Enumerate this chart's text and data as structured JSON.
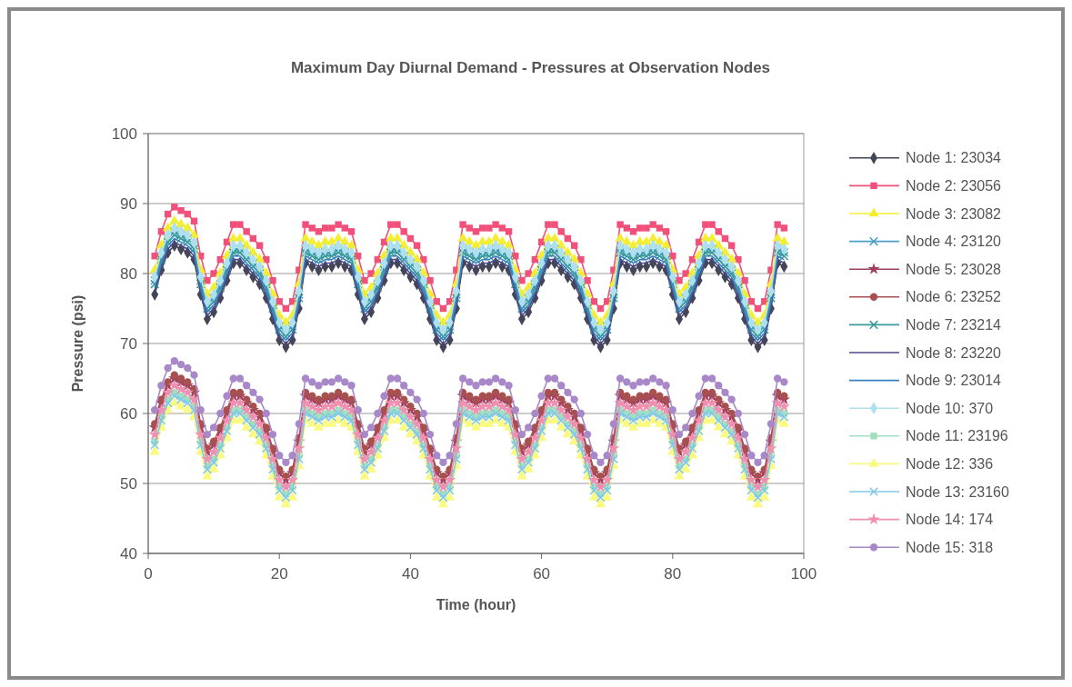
{
  "chart_data": {
    "type": "line",
    "title": "Maximum Day Diurnal Demand - Pressures at Observation Nodes",
    "xlabel": "Time (hour)",
    "ylabel": "Pressure (psi)",
    "xlim": [
      0,
      100
    ],
    "xticks": [
      0,
      20,
      40,
      60,
      80,
      100
    ],
    "ylim": [
      40,
      100
    ],
    "yticks": [
      40,
      50,
      60,
      70,
      80,
      90,
      100
    ],
    "grid": "y",
    "legend": "right",
    "x": [
      1,
      2,
      3,
      4,
      5,
      6,
      7,
      8,
      9,
      10,
      11,
      12,
      13,
      14,
      15,
      16,
      17,
      18,
      19,
      20,
      21,
      22,
      23,
      24,
      25,
      26,
      27,
      28,
      29,
      30,
      31,
      32,
      33,
      34,
      35,
      36,
      37,
      38,
      39,
      40,
      41,
      42,
      43,
      44,
      45,
      46,
      47,
      48,
      49,
      50,
      51,
      52,
      53,
      54,
      55,
      56,
      57,
      58,
      59,
      60,
      61,
      62,
      63,
      64,
      65,
      66,
      67,
      68,
      69,
      70,
      71,
      72,
      73,
      74,
      75,
      76,
      77,
      78,
      79,
      80,
      81,
      82,
      83,
      84,
      85,
      86,
      87,
      88,
      89,
      90,
      91,
      92,
      93,
      94,
      95,
      96,
      97
    ],
    "series": [
      {
        "name": "Node 1: 23034",
        "color": "#45455a",
        "marker": "diamond",
        "values": [
          77,
          80.5,
          83,
          84,
          83.5,
          83,
          82,
          77,
          73.5,
          74.5,
          76.5,
          79,
          81.5,
          81.5,
          80.5,
          79.5,
          78.5,
          76.5,
          73.5,
          70.5,
          69.5,
          70.5,
          75,
          81.5,
          81,
          80.5,
          81,
          81,
          81.5,
          81,
          80.5,
          77,
          73.5,
          74.5,
          76.5,
          79,
          81.5,
          81.5,
          80.5,
          79.5,
          78.5,
          76.5,
          73.5,
          70.5,
          69.5,
          70.5,
          75,
          81.5,
          81,
          80.5,
          81,
          81,
          81.5,
          81,
          80.5,
          77,
          73.5,
          74.5,
          76.5,
          79,
          81.5,
          81.5,
          80.5,
          79.5,
          78.5,
          76.5,
          73.5,
          70.5,
          69.5,
          70.5,
          75,
          81.5,
          81,
          80.5,
          81,
          81,
          81.5,
          81,
          80.5,
          77,
          73.5,
          74.5,
          76.5,
          79,
          81.5,
          81.5,
          80.5,
          79.5,
          78.5,
          76.5,
          73.5,
          70.5,
          69.5,
          70.5,
          75,
          81.5,
          81
        ]
      },
      {
        "name": "Node 2: 23056",
        "color": "#f0507a",
        "marker": "square",
        "values": [
          82.5,
          86,
          88.5,
          89.5,
          89,
          88.5,
          87.5,
          82.5,
          79,
          80,
          82,
          84.5,
          87,
          87,
          86,
          85,
          84,
          82,
          79,
          76,
          75,
          76,
          80.5,
          87,
          86.5,
          86,
          86.5,
          86.5,
          87,
          86.5,
          86,
          82.5,
          79,
          80,
          82,
          84.5,
          87,
          87,
          86,
          85,
          84,
          82,
          79,
          76,
          75,
          76,
          80.5,
          87,
          86.5,
          86,
          86.5,
          86.5,
          87,
          86.5,
          86,
          82.5,
          79,
          80,
          82,
          84.5,
          87,
          87,
          86,
          85,
          84,
          82,
          79,
          76,
          75,
          76,
          80.5,
          87,
          86.5,
          86,
          86.5,
          86.5,
          87,
          86.5,
          86,
          82.5,
          79,
          80,
          82,
          84.5,
          87,
          87,
          86,
          85,
          84,
          82,
          79,
          76,
          75,
          76,
          80.5,
          87,
          86.5
        ]
      },
      {
        "name": "Node 3: 23082",
        "color": "#f5ee30",
        "marker": "triangle",
        "values": [
          80.5,
          84,
          86.5,
          87.5,
          87,
          86.5,
          85.5,
          80.5,
          77,
          78,
          80,
          82.5,
          85,
          85,
          84,
          83,
          82,
          80,
          77,
          74,
          73,
          74,
          78.5,
          85,
          84.5,
          84,
          84.5,
          84.5,
          85,
          84.5,
          84,
          80.5,
          77,
          78,
          80,
          82.5,
          85,
          85,
          84,
          83,
          82,
          80,
          77,
          74,
          73,
          74,
          78.5,
          85,
          84.5,
          84,
          84.5,
          84.5,
          85,
          84.5,
          84,
          80.5,
          77,
          78,
          80,
          82.5,
          85,
          85,
          84,
          83,
          82,
          80,
          77,
          74,
          73,
          74,
          78.5,
          85,
          84.5,
          84,
          84.5,
          84.5,
          85,
          84.5,
          84,
          80.5,
          77,
          78,
          80,
          82.5,
          85,
          85,
          84,
          83,
          82,
          80,
          77,
          74,
          73,
          74,
          78.5,
          85,
          84.5
        ]
      },
      {
        "name": "Node 4: 23120",
        "color": "#4aa0c8",
        "marker": "cross",
        "values": [
          79,
          82.5,
          85,
          86,
          85.5,
          85,
          84,
          79,
          75.5,
          76.5,
          78.5,
          81,
          83.5,
          83.5,
          82.5,
          81.5,
          80.5,
          78.5,
          75.5,
          72.5,
          71.5,
          72.5,
          77,
          83.5,
          83,
          82.5,
          83,
          83,
          83.5,
          83,
          82.5,
          79,
          75.5,
          76.5,
          78.5,
          81,
          83.5,
          83.5,
          82.5,
          81.5,
          80.5,
          78.5,
          75.5,
          72.5,
          71.5,
          72.5,
          77,
          83.5,
          83,
          82.5,
          83,
          83,
          83.5,
          83,
          82.5,
          79,
          75.5,
          76.5,
          78.5,
          81,
          83.5,
          83.5,
          82.5,
          81.5,
          80.5,
          78.5,
          75.5,
          72.5,
          71.5,
          72.5,
          77,
          83.5,
          83,
          82.5,
          83,
          83,
          83.5,
          83,
          82.5,
          79,
          75.5,
          76.5,
          78.5,
          81,
          83.5,
          83.5,
          82.5,
          81.5,
          80.5,
          78.5,
          75.5,
          72.5,
          71.5,
          72.5,
          77,
          83.5,
          83
        ]
      },
      {
        "name": "Node 5: 23028",
        "color": "#a04060",
        "marker": "star",
        "values": [
          58,
          61.5,
          64,
          65,
          64.5,
          64,
          63,
          58,
          54.5,
          55.5,
          57.5,
          60,
          62.5,
          62.5,
          61.5,
          60.5,
          59.5,
          57.5,
          54.5,
          51.5,
          50.5,
          51.5,
          56,
          62.5,
          62,
          61.5,
          62,
          62,
          62.5,
          62,
          61.5,
          58,
          54.5,
          55.5,
          57.5,
          60,
          62.5,
          62.5,
          61.5,
          60.5,
          59.5,
          57.5,
          54.5,
          51.5,
          50.5,
          51.5,
          56,
          62.5,
          62,
          61.5,
          62,
          62,
          62.5,
          62,
          61.5,
          58,
          54.5,
          55.5,
          57.5,
          60,
          62.5,
          62.5,
          61.5,
          60.5,
          59.5,
          57.5,
          54.5,
          51.5,
          50.5,
          51.5,
          56,
          62.5,
          62,
          61.5,
          62,
          62,
          62.5,
          62,
          61.5,
          58,
          54.5,
          55.5,
          57.5,
          60,
          62.5,
          62.5,
          61.5,
          60.5,
          59.5,
          57.5,
          54.5,
          51.5,
          50.5,
          51.5,
          56,
          62.5,
          62
        ]
      },
      {
        "name": "Node 6: 23252",
        "color": "#a85050",
        "marker": "circle",
        "values": [
          58.5,
          62,
          64.5,
          65.5,
          65,
          64.5,
          63.5,
          58.5,
          55,
          56,
          58,
          60.5,
          63,
          63,
          62,
          61,
          60,
          58,
          55,
          52,
          51,
          52,
          56.5,
          63,
          62.5,
          62,
          62.5,
          62.5,
          63,
          62.5,
          62,
          58.5,
          55,
          56,
          58,
          60.5,
          63,
          63,
          62,
          61,
          60,
          58,
          55,
          52,
          51,
          52,
          56.5,
          63,
          62.5,
          62,
          62.5,
          62.5,
          63,
          62.5,
          62,
          58.5,
          55,
          56,
          58,
          60.5,
          63,
          63,
          62,
          61,
          60,
          58,
          55,
          52,
          51,
          52,
          56.5,
          63,
          62.5,
          62,
          62.5,
          62.5,
          63,
          62.5,
          62,
          58.5,
          55,
          56,
          58,
          60.5,
          63,
          63,
          62,
          61,
          60,
          58,
          55,
          52,
          51,
          52,
          56.5,
          63,
          62.5
        ]
      },
      {
        "name": "Node 7: 23214",
        "color": "#3a9a9a",
        "marker": "cross",
        "values": [
          78.5,
          82,
          84.5,
          85.5,
          85,
          84.5,
          83.5,
          78.5,
          75,
          76,
          78,
          80.5,
          83,
          83,
          82,
          81,
          80,
          78,
          75,
          72,
          71,
          72,
          76.5,
          83,
          82.5,
          82,
          82.5,
          82.5,
          83,
          82.5,
          82,
          78.5,
          75,
          76,
          78,
          80.5,
          83,
          83,
          82,
          81,
          80,
          78,
          75,
          72,
          71,
          72,
          76.5,
          83,
          82.5,
          82,
          82.5,
          82.5,
          83,
          82.5,
          82,
          78.5,
          75,
          76,
          78,
          80.5,
          83,
          83,
          82,
          81,
          80,
          78,
          75,
          72,
          71,
          72,
          76.5,
          83,
          82.5,
          82,
          82.5,
          82.5,
          83,
          82.5,
          82,
          78.5,
          75,
          76,
          78,
          80.5,
          83,
          83,
          82,
          81,
          80,
          78,
          75,
          72,
          71,
          72,
          76.5,
          83,
          82.5
        ]
      },
      {
        "name": "Node 8: 23220",
        "color": "#4a4a8a",
        "marker": "none",
        "values": [
          77.5,
          81,
          83.5,
          84.5,
          84,
          83.5,
          82.5,
          77.5,
          74,
          75,
          77,
          79.5,
          82,
          82,
          81,
          80,
          79,
          77,
          74,
          71,
          70,
          71,
          75.5,
          82,
          81.5,
          81,
          81.5,
          81.5,
          82,
          81.5,
          81,
          77.5,
          74,
          75,
          77,
          79.5,
          82,
          82,
          81,
          80,
          79,
          77,
          74,
          71,
          70,
          71,
          75.5,
          82,
          81.5,
          81,
          81.5,
          81.5,
          82,
          81.5,
          81,
          77.5,
          74,
          75,
          77,
          79.5,
          82,
          82,
          81,
          80,
          79,
          77,
          74,
          71,
          70,
          71,
          75.5,
          82,
          81.5,
          81,
          81.5,
          81.5,
          82,
          81.5,
          81,
          77.5,
          74,
          75,
          77,
          79.5,
          82,
          82,
          81,
          80,
          79,
          77,
          74,
          71,
          70,
          71,
          75.5,
          82,
          81.5
        ]
      },
      {
        "name": "Node 9: 23014",
        "color": "#3a80c0",
        "marker": "none",
        "values": [
          78,
          81.5,
          84,
          85,
          84.5,
          84,
          83,
          78,
          74.5,
          75.5,
          77.5,
          80,
          82.5,
          82.5,
          81.5,
          80.5,
          79.5,
          77.5,
          74.5,
          71.5,
          70.5,
          71.5,
          76,
          82.5,
          82,
          81.5,
          82,
          82,
          82.5,
          82,
          81.5,
          78,
          74.5,
          75.5,
          77.5,
          80,
          82.5,
          82.5,
          81.5,
          80.5,
          79.5,
          77.5,
          74.5,
          71.5,
          70.5,
          71.5,
          76,
          82.5,
          82,
          81.5,
          82,
          82,
          82.5,
          82,
          81.5,
          78,
          74.5,
          75.5,
          77.5,
          80,
          82.5,
          82.5,
          81.5,
          80.5,
          79.5,
          77.5,
          74.5,
          71.5,
          70.5,
          71.5,
          76,
          82.5,
          82,
          81.5,
          82,
          82,
          82.5,
          82,
          81.5,
          78,
          74.5,
          75.5,
          77.5,
          80,
          82.5,
          82.5,
          81.5,
          80.5,
          79.5,
          77.5,
          74.5,
          71.5,
          70.5,
          71.5,
          76,
          82.5,
          82
        ]
      },
      {
        "name": "Node 10: 370",
        "color": "#aee0f0",
        "marker": "diamond",
        "values": [
          79.5,
          83,
          85.5,
          86.5,
          86,
          85.5,
          84.5,
          79.5,
          76,
          77,
          79,
          81.5,
          84,
          84,
          83,
          82,
          81,
          79,
          76,
          73,
          72,
          73,
          77.5,
          84,
          83.5,
          83,
          83.5,
          83.5,
          84,
          83.5,
          83,
          79.5,
          76,
          77,
          79,
          81.5,
          84,
          84,
          83,
          82,
          81,
          79,
          76,
          73,
          72,
          73,
          77.5,
          84,
          83.5,
          83,
          83.5,
          83.5,
          84,
          83.5,
          83,
          79.5,
          76,
          77,
          79,
          81.5,
          84,
          84,
          83,
          82,
          81,
          79,
          76,
          73,
          72,
          73,
          77.5,
          84,
          83.5,
          83,
          83.5,
          83.5,
          84,
          83.5,
          83,
          79.5,
          76,
          77,
          79,
          81.5,
          84,
          84,
          83,
          82,
          81,
          79,
          76,
          73,
          72,
          73,
          77.5,
          84,
          83.5
        ]
      },
      {
        "name": "Node 11: 23196",
        "color": "#a0e0c0",
        "marker": "square",
        "values": [
          56,
          59.5,
          62,
          63,
          62.5,
          62,
          61,
          56,
          52.5,
          53.5,
          55.5,
          58,
          60.5,
          60.5,
          59.5,
          58.5,
          57.5,
          55.5,
          52.5,
          49.5,
          48.5,
          49.5,
          54,
          60.5,
          60,
          59.5,
          60,
          60,
          60.5,
          60,
          59.5,
          56,
          52.5,
          53.5,
          55.5,
          58,
          60.5,
          60.5,
          59.5,
          58.5,
          57.5,
          55.5,
          52.5,
          49.5,
          48.5,
          49.5,
          54,
          60.5,
          60,
          59.5,
          60,
          60,
          60.5,
          60,
          59.5,
          56,
          52.5,
          53.5,
          55.5,
          58,
          60.5,
          60.5,
          59.5,
          58.5,
          57.5,
          55.5,
          52.5,
          49.5,
          48.5,
          49.5,
          54,
          60.5,
          60,
          59.5,
          60,
          60,
          60.5,
          60,
          59.5,
          56,
          52.5,
          53.5,
          55.5,
          58,
          60.5,
          60.5,
          59.5,
          58.5,
          57.5,
          55.5,
          52.5,
          49.5,
          48.5,
          49.5,
          54,
          60.5,
          60
        ]
      },
      {
        "name": "Node 12: 336",
        "color": "#fafa80",
        "marker": "triangle",
        "values": [
          54.5,
          58,
          60.5,
          61.5,
          61,
          60.5,
          59.5,
          54.5,
          51,
          52,
          54,
          56.5,
          59,
          59,
          58,
          57,
          56,
          54,
          51,
          48,
          47,
          48,
          52.5,
          59,
          58.5,
          58,
          58.5,
          58.5,
          59,
          58.5,
          58,
          54.5,
          51,
          52,
          54,
          56.5,
          59,
          59,
          58,
          57,
          56,
          54,
          51,
          48,
          47,
          48,
          52.5,
          59,
          58.5,
          58,
          58.5,
          58.5,
          59,
          58.5,
          58,
          54.5,
          51,
          52,
          54,
          56.5,
          59,
          59,
          58,
          57,
          56,
          54,
          51,
          48,
          47,
          48,
          52.5,
          59,
          58.5,
          58,
          58.5,
          58.5,
          59,
          58.5,
          58,
          54.5,
          51,
          52,
          54,
          56.5,
          59,
          59,
          58,
          57,
          56,
          54,
          51,
          48,
          47,
          48,
          52.5,
          59,
          58.5
        ]
      },
      {
        "name": "Node 13: 23160",
        "color": "#80c8e8",
        "marker": "cross",
        "values": [
          55.5,
          59,
          61.5,
          62.5,
          62,
          61.5,
          60.5,
          55.5,
          52,
          53,
          55,
          57.5,
          60,
          60,
          59,
          58,
          57,
          55,
          52,
          49,
          48,
          49,
          53.5,
          60,
          59.5,
          59,
          59.5,
          59.5,
          60,
          59.5,
          59,
          55.5,
          52,
          53,
          55,
          57.5,
          60,
          60,
          59,
          58,
          57,
          55,
          52,
          49,
          48,
          49,
          53.5,
          60,
          59.5,
          59,
          59.5,
          59.5,
          60,
          59.5,
          59,
          55.5,
          52,
          53,
          55,
          57.5,
          60,
          60,
          59,
          58,
          57,
          55,
          52,
          49,
          48,
          49,
          53.5,
          60,
          59.5,
          59,
          59.5,
          59.5,
          60,
          59.5,
          59,
          55.5,
          52,
          53,
          55,
          57.5,
          60,
          60,
          59,
          58,
          57,
          55,
          52,
          49,
          48,
          49,
          53.5,
          60,
          59.5
        ]
      },
      {
        "name": "Node 14: 174",
        "color": "#f090b0",
        "marker": "star",
        "values": [
          57,
          60.5,
          63,
          64,
          63.5,
          63,
          62,
          57,
          53.5,
          54.5,
          56.5,
          59,
          61.5,
          61.5,
          60.5,
          59.5,
          58.5,
          56.5,
          53.5,
          50.5,
          49.5,
          50.5,
          55,
          61.5,
          61,
          60.5,
          61,
          61,
          61.5,
          61,
          60.5,
          57,
          53.5,
          54.5,
          56.5,
          59,
          61.5,
          61.5,
          60.5,
          59.5,
          58.5,
          56.5,
          53.5,
          50.5,
          49.5,
          50.5,
          55,
          61.5,
          61,
          60.5,
          61,
          61,
          61.5,
          61,
          60.5,
          57,
          53.5,
          54.5,
          56.5,
          59,
          61.5,
          61.5,
          60.5,
          59.5,
          58.5,
          56.5,
          53.5,
          50.5,
          49.5,
          50.5,
          55,
          61.5,
          61,
          60.5,
          61,
          61,
          61.5,
          61,
          60.5,
          57,
          53.5,
          54.5,
          56.5,
          59,
          61.5,
          61.5,
          60.5,
          59.5,
          58.5,
          56.5,
          53.5,
          50.5,
          49.5,
          50.5,
          55,
          61.5,
          61
        ]
      },
      {
        "name": "Node 15: 318",
        "color": "#a888c8",
        "marker": "circle",
        "values": [
          60.5,
          64,
          66.5,
          67.5,
          67,
          66.5,
          65.5,
          60.5,
          57,
          58,
          60,
          62.5,
          65,
          65,
          64,
          63,
          62,
          60,
          57,
          54,
          53,
          54,
          58.5,
          65,
          64.5,
          64,
          64.5,
          64.5,
          65,
          64.5,
          64,
          60.5,
          57,
          58,
          60,
          62.5,
          65,
          65,
          64,
          63,
          62,
          60,
          57,
          54,
          53,
          54,
          58.5,
          65,
          64.5,
          64,
          64.5,
          64.5,
          65,
          64.5,
          64,
          60.5,
          57,
          58,
          60,
          62.5,
          65,
          65,
          64,
          63,
          62,
          60,
          57,
          54,
          53,
          54,
          58.5,
          65,
          64.5,
          64,
          64.5,
          64.5,
          65,
          64.5,
          64,
          60.5,
          57,
          58,
          60,
          62.5,
          65,
          65,
          64,
          63,
          62,
          60,
          57,
          54,
          53,
          54,
          58.5,
          65,
          64.5
        ]
      }
    ]
  }
}
